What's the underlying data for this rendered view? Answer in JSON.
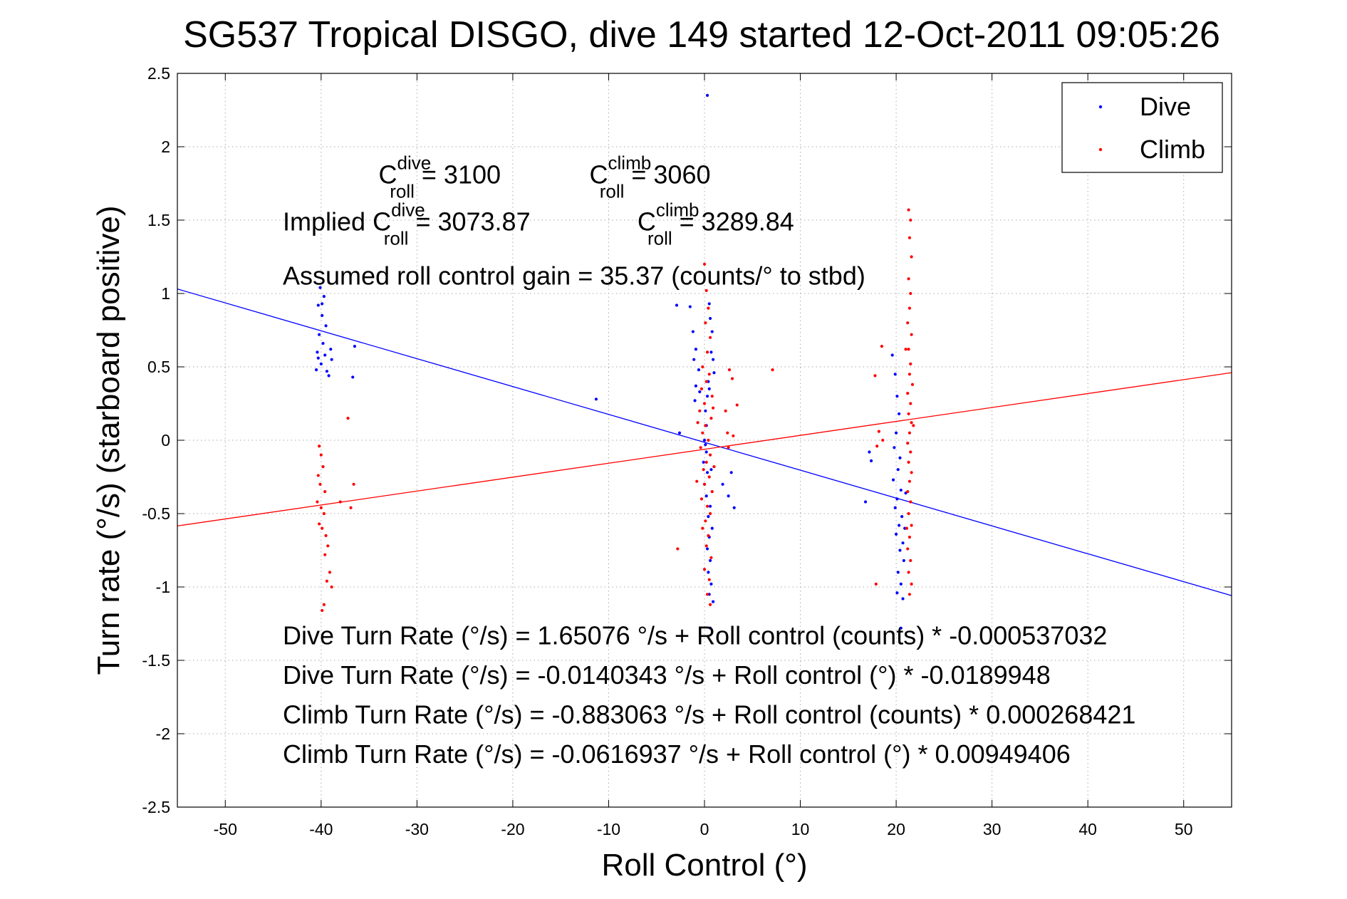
{
  "chart_data": {
    "type": "scatter",
    "title": "SG537 Tropical DISGO, dive 149 started 12-Oct-2011 09:05:26",
    "xlabel": "Roll Control (°)",
    "ylabel": "Turn rate (°/s)  (starboard positive)",
    "xlim": [
      -55,
      55
    ],
    "ylim": [
      -2.5,
      2.5
    ],
    "xticks": [
      -50,
      -40,
      -30,
      -20,
      -10,
      0,
      10,
      20,
      30,
      40,
      50
    ],
    "yticks": [
      -2.5,
      -2,
      -1.5,
      -1,
      -0.5,
      0,
      0.5,
      1,
      1.5,
      2,
      2.5
    ],
    "grid": true,
    "legend_position": "top-right",
    "series": [
      {
        "name": "Dive",
        "color": "#0000ff",
        "fit": {
          "intercept": -0.0140343,
          "slope": -0.0189948
        },
        "points": [
          [
            -40.1,
            1.04
          ],
          [
            -39.7,
            0.98
          ],
          [
            -40.3,
            0.92
          ],
          [
            -39.9,
            0.85
          ],
          [
            -39.5,
            0.78
          ],
          [
            -40.2,
            0.72
          ],
          [
            -39.8,
            0.66
          ],
          [
            -40.4,
            0.6
          ],
          [
            -39.6,
            0.58
          ],
          [
            -40.0,
            0.52
          ],
          [
            -40.5,
            0.48
          ],
          [
            -39.4,
            0.47
          ],
          [
            -39.2,
            0.44
          ],
          [
            -39.0,
            0.62
          ],
          [
            -38.9,
            0.55
          ],
          [
            -36.5,
            0.64
          ],
          [
            -36.7,
            0.43
          ],
          [
            -39.9,
            0.93
          ],
          [
            -40.3,
            0.56
          ],
          [
            -11.3,
            0.28
          ],
          [
            -2.9,
            0.92
          ],
          [
            -1.5,
            0.91
          ],
          [
            -1.2,
            0.74
          ],
          [
            -0.9,
            0.62
          ],
          [
            -1.1,
            0.55
          ],
          [
            -0.6,
            0.48
          ],
          [
            -0.9,
            0.37
          ],
          [
            -0.5,
            0.33
          ],
          [
            -1.0,
            0.27
          ],
          [
            -2.6,
            0.05
          ],
          [
            0.3,
            2.35
          ],
          [
            0.5,
            0.93
          ],
          [
            0.6,
            0.83
          ],
          [
            0.8,
            0.74
          ],
          [
            0.7,
            0.6
          ],
          [
            0.9,
            0.55
          ],
          [
            1.0,
            0.46
          ],
          [
            0.4,
            0.4
          ],
          [
            0.3,
            0.3
          ],
          [
            0.1,
            0.2
          ],
          [
            0.2,
            0.1
          ],
          [
            0.0,
            0.0
          ],
          [
            0.1,
            -0.03
          ],
          [
            0.2,
            -0.08
          ],
          [
            -0.1,
            -0.15
          ],
          [
            0.3,
            -0.22
          ],
          [
            0.0,
            -0.3
          ],
          [
            0.2,
            -0.38
          ],
          [
            0.6,
            -0.45
          ],
          [
            0.4,
            -0.52
          ],
          [
            0.8,
            -0.6
          ],
          [
            0.5,
            -0.66
          ],
          [
            0.3,
            -0.74
          ],
          [
            0.6,
            -0.82
          ],
          [
            0.4,
            -0.9
          ],
          [
            0.7,
            -0.98
          ],
          [
            0.5,
            -1.05
          ],
          [
            0.9,
            -1.1
          ],
          [
            0.6,
            -1.28
          ],
          [
            1.9,
            -0.3
          ],
          [
            2.5,
            -0.38
          ],
          [
            3.1,
            -0.46
          ],
          [
            2.8,
            -0.22
          ],
          [
            0.5,
            0.35
          ],
          [
            0.7,
            -0.2
          ],
          [
            17.2,
            -0.08
          ],
          [
            17.4,
            -0.14
          ],
          [
            16.8,
            -0.42
          ],
          [
            19.6,
            0.58
          ],
          [
            19.9,
            0.45
          ],
          [
            20.1,
            0.3
          ],
          [
            20.3,
            0.18
          ],
          [
            20.0,
            0.05
          ],
          [
            19.8,
            -0.05
          ],
          [
            20.4,
            -0.12
          ],
          [
            20.2,
            -0.2
          ],
          [
            19.7,
            -0.27
          ],
          [
            20.5,
            -0.34
          ],
          [
            20.1,
            -0.4
          ],
          [
            19.9,
            -0.46
          ],
          [
            20.6,
            -0.52
          ],
          [
            20.3,
            -0.58
          ],
          [
            20.0,
            -0.64
          ],
          [
            20.7,
            -0.7
          ],
          [
            20.4,
            -0.75
          ],
          [
            20.8,
            -0.82
          ],
          [
            20.2,
            -0.9
          ],
          [
            20.5,
            -0.98
          ],
          [
            20.1,
            -1.04
          ],
          [
            20.7,
            -1.08
          ],
          [
            20.5,
            -1.28
          ],
          [
            21.0,
            -0.36
          ],
          [
            20.9,
            -0.6
          ]
        ]
      },
      {
        "name": "Climb",
        "color": "#ff0000",
        "fit": {
          "intercept": -0.0616937,
          "slope": 0.00949406
        },
        "points": [
          [
            -40.2,
            -0.04
          ],
          [
            -40.0,
            -0.1
          ],
          [
            -39.8,
            -0.18
          ],
          [
            -40.3,
            -0.24
          ],
          [
            -40.1,
            -0.3
          ],
          [
            -39.6,
            -0.35
          ],
          [
            -40.4,
            -0.42
          ],
          [
            -40.0,
            -0.46
          ],
          [
            -39.7,
            -0.5
          ],
          [
            -40.2,
            -0.57
          ],
          [
            -39.9,
            -0.6
          ],
          [
            -39.5,
            -0.65
          ],
          [
            -39.3,
            -0.72
          ],
          [
            -39.6,
            -0.78
          ],
          [
            -39.1,
            -0.9
          ],
          [
            -39.4,
            -0.96
          ],
          [
            -39.7,
            -1.12
          ],
          [
            -39.9,
            -1.16
          ],
          [
            -38.9,
            -1.0
          ],
          [
            -37.2,
            0.15
          ],
          [
            -36.6,
            -0.3
          ],
          [
            -38.0,
            -0.42
          ],
          [
            -36.9,
            -0.46
          ],
          [
            -2.8,
            -0.74
          ],
          [
            0.0,
            1.2
          ],
          [
            0.2,
            1.02
          ],
          [
            0.4,
            0.9
          ],
          [
            0.1,
            0.8
          ],
          [
            0.6,
            0.7
          ],
          [
            0.3,
            0.6
          ],
          [
            -0.2,
            0.5
          ],
          [
            0.5,
            0.45
          ],
          [
            0.2,
            0.4
          ],
          [
            -0.3,
            0.35
          ],
          [
            0.8,
            0.3
          ],
          [
            0.0,
            0.25
          ],
          [
            -0.5,
            0.2
          ],
          [
            0.7,
            0.15
          ],
          [
            0.1,
            0.1
          ],
          [
            -0.2,
            0.05
          ],
          [
            0.4,
            0.0
          ],
          [
            -0.4,
            -0.05
          ],
          [
            0.6,
            -0.1
          ],
          [
            0.2,
            -0.15
          ],
          [
            -0.1,
            -0.2
          ],
          [
            0.5,
            -0.25
          ],
          [
            0.0,
            -0.3
          ],
          [
            0.8,
            -0.35
          ],
          [
            -0.3,
            -0.4
          ],
          [
            0.3,
            -0.45
          ],
          [
            0.6,
            -0.5
          ],
          [
            0.1,
            -0.55
          ],
          [
            -0.2,
            -0.6
          ],
          [
            0.4,
            -0.65
          ],
          [
            0.2,
            -0.72
          ],
          [
            0.7,
            -0.8
          ],
          [
            0.0,
            -0.88
          ],
          [
            0.5,
            -0.95
          ],
          [
            0.3,
            -1.05
          ],
          [
            0.6,
            -1.12
          ],
          [
            0.9,
            0.22
          ],
          [
            -0.7,
            0.12
          ],
          [
            1.0,
            -0.18
          ],
          [
            -0.8,
            -0.28
          ],
          [
            2.6,
            0.48
          ],
          [
            2.9,
            0.42
          ],
          [
            2.2,
            0.2
          ],
          [
            3.0,
            0.03
          ],
          [
            2.5,
            -0.05
          ],
          [
            2.4,
            0.05
          ],
          [
            3.4,
            0.24
          ],
          [
            7.1,
            0.48
          ],
          [
            18.5,
            0.64
          ],
          [
            17.8,
            0.44
          ],
          [
            18.2,
            0.06
          ],
          [
            18.6,
            0.0
          ],
          [
            18.0,
            -0.04
          ],
          [
            17.9,
            -0.98
          ],
          [
            21.3,
            1.57
          ],
          [
            21.5,
            1.5
          ],
          [
            21.4,
            1.38
          ],
          [
            21.6,
            1.25
          ],
          [
            21.3,
            1.1
          ],
          [
            21.5,
            1.0
          ],
          [
            21.4,
            0.9
          ],
          [
            21.2,
            0.8
          ],
          [
            21.6,
            0.72
          ],
          [
            21.3,
            0.62
          ],
          [
            21.5,
            0.52
          ],
          [
            21.4,
            0.45
          ],
          [
            21.7,
            0.38
          ],
          [
            21.2,
            0.32
          ],
          [
            21.5,
            0.25
          ],
          [
            21.3,
            0.18
          ],
          [
            21.6,
            0.12
          ],
          [
            21.4,
            0.05
          ],
          [
            21.2,
            -0.02
          ],
          [
            21.5,
            -0.08
          ],
          [
            21.3,
            -0.15
          ],
          [
            21.6,
            -0.22
          ],
          [
            21.4,
            -0.28
          ],
          [
            21.2,
            -0.35
          ],
          [
            21.5,
            -0.42
          ],
          [
            21.3,
            -0.5
          ],
          [
            21.6,
            -0.58
          ],
          [
            21.4,
            -0.66
          ],
          [
            21.2,
            -0.74
          ],
          [
            21.5,
            -0.82
          ],
          [
            21.3,
            -0.9
          ],
          [
            21.6,
            -0.98
          ],
          [
            21.4,
            -1.05
          ],
          [
            21.0,
            0.62
          ],
          [
            21.8,
            0.1
          ],
          [
            21.1,
            -0.6
          ]
        ]
      }
    ],
    "annotations": [
      {
        "kind": "c",
        "prefix": "",
        "symbol": "C",
        "sup": "dive",
        "sub": "roll",
        "value": " = 3100",
        "x": -34,
        "y": 1.75
      },
      {
        "kind": "c",
        "prefix": "",
        "symbol": "C",
        "sup": "climb",
        "sub": "roll",
        "value": " = 3060",
        "x": -12,
        "y": 1.75
      },
      {
        "kind": "c",
        "prefix": "Implied ",
        "symbol": "C",
        "sup": "dive",
        "sub": "roll",
        "value": " = 3073.87",
        "x": -44,
        "y": 1.43
      },
      {
        "kind": "c",
        "prefix": "",
        "symbol": "C",
        "sup": "climb",
        "sub": "roll",
        "value": " = 3289.84",
        "x": -7,
        "y": 1.43
      },
      {
        "kind": "text",
        "text": "Assumed roll control gain = 35.37 (counts/° to stbd)",
        "x": -44,
        "y": 1.06
      },
      {
        "kind": "text",
        "text": "Dive Turn Rate (°/s) = 1.65076 °/s + Roll control (counts) * -0.000537032",
        "x": -44,
        "y": -1.39
      },
      {
        "kind": "text",
        "text": "Dive Turn Rate (°/s) = -0.0140343 °/s + Roll control (°) * -0.0189948",
        "x": -44,
        "y": -1.66
      },
      {
        "kind": "text",
        "text": "Climb Turn Rate (°/s) = -0.883063 °/s + Roll control (counts) * 0.000268421",
        "x": -44,
        "y": -1.93
      },
      {
        "kind": "text",
        "text": "Climb Turn Rate (°/s) = -0.0616937 °/s + Roll control (°) * 0.00949406",
        "x": -44,
        "y": -2.2
      }
    ]
  }
}
